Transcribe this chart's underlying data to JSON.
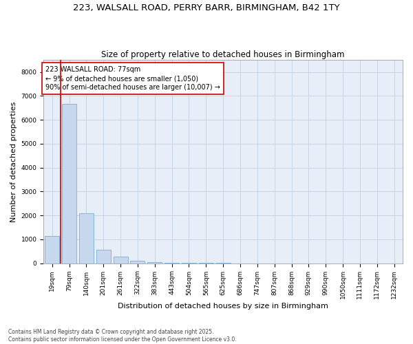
{
  "title": "223, WALSALL ROAD, PERRY BARR, BIRMINGHAM, B42 1TY",
  "subtitle": "Size of property relative to detached houses in Birmingham",
  "xlabel": "Distribution of detached houses by size in Birmingham",
  "ylabel": "Number of detached properties",
  "categories": [
    "19sqm",
    "79sqm",
    "140sqm",
    "201sqm",
    "261sqm",
    "322sqm",
    "383sqm",
    "443sqm",
    "504sqm",
    "565sqm",
    "625sqm",
    "686sqm",
    "747sqm",
    "807sqm",
    "868sqm",
    "929sqm",
    "990sqm",
    "1050sqm",
    "1111sqm",
    "1172sqm",
    "1232sqm"
  ],
  "values": [
    1150,
    6650,
    2100,
    550,
    270,
    115,
    48,
    22,
    8,
    4,
    3,
    0,
    0,
    0,
    0,
    0,
    0,
    0,
    0,
    0,
    0
  ],
  "bar_color": "#c5d8ed",
  "bar_edge_color": "#7aaed0",
  "vline_color": "#cc0000",
  "annotation_title": "223 WALSALL ROAD: 77sqm",
  "annotation_line1": "← 9% of detached houses are smaller (1,050)",
  "annotation_line2": "90% of semi-detached houses are larger (10,007) →",
  "annotation_box_color": "white",
  "annotation_box_edge": "#cc0000",
  "ylim": [
    0,
    8500
  ],
  "yticks": [
    0,
    1000,
    2000,
    3000,
    4000,
    5000,
    6000,
    7000,
    8000
  ],
  "grid_color": "#c8d4e8",
  "bg_color": "#e8eef8",
  "footer": "Contains HM Land Registry data © Crown copyright and database right 2025.\nContains public sector information licensed under the Open Government Licence v3.0.",
  "title_fontsize": 9.5,
  "subtitle_fontsize": 8.5,
  "tick_fontsize": 6.5,
  "ylabel_fontsize": 8,
  "xlabel_fontsize": 8,
  "annotation_fontsize": 7,
  "footer_fontsize": 5.5
}
